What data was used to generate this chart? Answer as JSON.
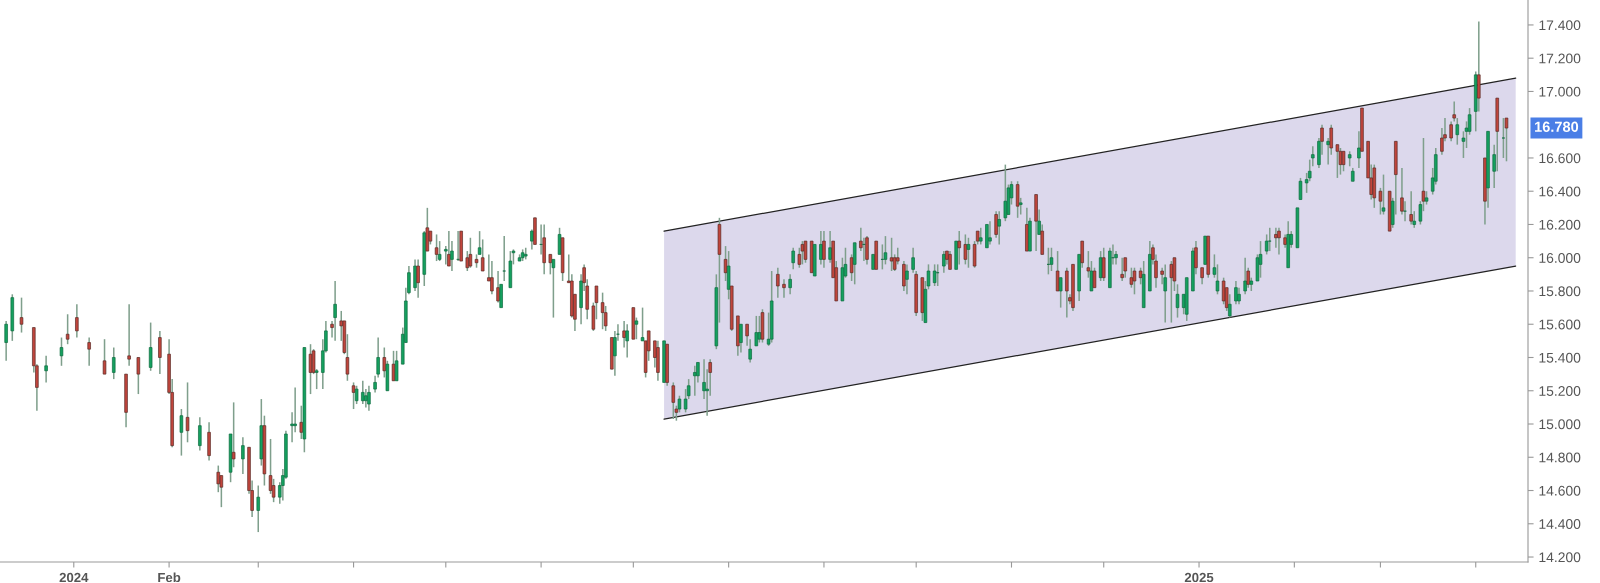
{
  "chart_data": {
    "type": "candlestick",
    "x": [
      "2023-12-10",
      "2023-12-12",
      "2023-12-15",
      "2023-12-19",
      "2023-12-20",
      "2023-12-23",
      "2023-12-28",
      "2023-12-30",
      "2024-01-02",
      "2024-01-06",
      "2024-01-11",
      "2024-01-14",
      "2024-01-18",
      "2024-01-19",
      "2024-01-22",
      "2024-01-26",
      "2024-01-29",
      "2024-02-01",
      "2024-02-02",
      "2024-02-05",
      "2024-02-07",
      "2024-02-11",
      "2024-02-14",
      "2024-02-17",
      "2024-02-18",
      "2024-02-21",
      "2024-02-22",
      "2024-02-25",
      "2024-02-27",
      "2024-02-28",
      "2024-03-01",
      "2024-03-02",
      "2024-03-03",
      "2024-03-05",
      "2024-03-06",
      "2024-03-08",
      "2024-03-09",
      "2024-03-10",
      "2024-03-12",
      "2024-03-13",
      "2024-03-15",
      "2024-03-16",
      "2024-03-18",
      "2024-03-19",
      "2024-03-20",
      "2024-03-22",
      "2024-03-23",
      "2024-03-25",
      "2024-03-26",
      "2024-03-28",
      "2024-03-29",
      "2024-03-30",
      "2024-04-01",
      "2024-04-02",
      "2024-04-04",
      "2024-04-05",
      "2024-04-06",
      "2024-04-08",
      "2024-04-09",
      "2024-04-11",
      "2024-04-12",
      "2024-04-14",
      "2024-04-15",
      "2024-04-17",
      "2024-04-18",
      "2024-04-19",
      "2024-04-21",
      "2024-04-22",
      "2024-04-24",
      "2024-04-25",
      "2024-04-26",
      "2024-04-28",
      "2024-04-29",
      "2024-05-01",
      "2024-05-02",
      "2024-05-03",
      "2024-05-05",
      "2024-05-06",
      "2024-05-08",
      "2024-05-09",
      "2024-05-11",
      "2024-05-12",
      "2024-05-13",
      "2024-05-15",
      "2024-05-16",
      "2024-05-18",
      "2024-05-19",
      "2024-05-20",
      "2024-05-22",
      "2024-05-23",
      "2024-05-25",
      "2024-05-26",
      "2024-05-27",
      "2024-05-29",
      "2024-05-30",
      "2024-06-01",
      "2024-06-02",
      "2024-06-04",
      "2024-06-05",
      "2024-06-07",
      "2024-06-08",
      "2024-06-10",
      "2024-06-11",
      "2024-06-12",
      "2024-06-14",
      "2024-06-15",
      "2024-06-16",
      "2024-06-18",
      "2024-06-19",
      "2024-06-21",
      "2024-06-22",
      "2024-06-24",
      "2024-06-25",
      "2024-06-26",
      "2024-06-28",
      "2024-06-29",
      "2024-07-01",
      "2024-07-02",
      "2024-07-04",
      "2024-07-05",
      "2024-07-06",
      "2024-07-08",
      "2024-07-09",
      "2024-07-11",
      "2024-07-12",
      "2024-07-14",
      "2024-07-15",
      "2024-07-16",
      "2024-07-18",
      "2024-07-19",
      "2024-07-21",
      "2024-07-22",
      "2024-07-24",
      "2024-07-25",
      "2024-07-26",
      "2024-07-28",
      "2024-07-29",
      "2024-07-31",
      "2024-08-01",
      "2024-08-02",
      "2024-08-04",
      "2024-08-05",
      "2024-08-07",
      "2024-08-08",
      "2024-08-10",
      "2024-08-11",
      "2024-08-12",
      "2024-08-14",
      "2024-08-15",
      "2024-08-17",
      "2024-08-19",
      "2024-08-21",
      "2024-08-22",
      "2024-08-24",
      "2024-08-25",
      "2024-08-26",
      "2024-08-28",
      "2024-08-29",
      "2024-08-31",
      "2024-09-01",
      "2024-09-03",
      "2024-09-04",
      "2024-09-05",
      "2024-09-07",
      "2024-09-08",
      "2024-09-10",
      "2024-09-11",
      "2024-09-13",
      "2024-09-14",
      "2024-09-15",
      "2024-09-17",
      "2024-09-18",
      "2024-09-20",
      "2024-09-21",
      "2024-09-23",
      "2024-09-24",
      "2024-09-25",
      "2024-09-27",
      "2024-09-28",
      "2024-09-30",
      "2024-10-01",
      "2024-10-03",
      "2024-10-04",
      "2024-10-05",
      "2024-10-07",
      "2024-10-08",
      "2024-10-10",
      "2024-10-11",
      "2024-10-12",
      "2024-10-14",
      "2024-10-15",
      "2024-10-17",
      "2024-10-18",
      "2024-10-20",
      "2024-10-21",
      "2024-10-22",
      "2024-10-24",
      "2024-10-25",
      "2024-10-27",
      "2024-10-28",
      "2024-10-30",
      "2024-10-31",
      "2024-11-01",
      "2024-11-03",
      "2024-11-04",
      "2024-11-06",
      "2024-11-07",
      "2024-11-09",
      "2024-11-10",
      "2024-11-11",
      "2024-11-13",
      "2024-11-14",
      "2024-11-16",
      "2024-11-17",
      "2024-11-19",
      "2024-11-20",
      "2024-11-21",
      "2024-11-23",
      "2024-11-24",
      "2024-11-26",
      "2024-11-27",
      "2024-11-28",
      "2024-11-30",
      "2024-12-01",
      "2024-12-03",
      "2024-12-04",
      "2024-12-05",
      "2024-12-07",
      "2024-12-08",
      "2024-12-10",
      "2024-12-11",
      "2024-12-13",
      "2024-12-14",
      "2024-12-16",
      "2024-12-17",
      "2024-12-18",
      "2024-12-20",
      "2024-12-21",
      "2024-12-23",
      "2024-12-24",
      "2024-12-25",
      "2024-12-27",
      "2024-12-28",
      "2024-12-30",
      "2024-12-31",
      "2025-01-02",
      "2025-01-03",
      "2025-01-04",
      "2025-01-06",
      "2025-01-07",
      "2025-01-09",
      "2025-01-10",
      "2025-01-11",
      "2025-01-13",
      "2025-01-14",
      "2025-01-16",
      "2025-01-17",
      "2025-01-18",
      "2025-01-20",
      "2025-01-21",
      "2025-01-23",
      "2025-01-24",
      "2025-01-26",
      "2025-01-27",
      "2025-01-29",
      "2025-01-30",
      "2025-01-31",
      "2025-02-02",
      "2025-02-03",
      "2025-02-05",
      "2025-02-06",
      "2025-02-07",
      "2025-02-09",
      "2025-02-10",
      "2025-02-12",
      "2025-02-13",
      "2025-02-15",
      "2025-02-16",
      "2025-02-17",
      "2025-02-19",
      "2025-02-20",
      "2025-02-22",
      "2025-02-23",
      "2025-02-25",
      "2025-02-26",
      "2025-02-27",
      "2025-03-01",
      "2025-03-02",
      "2025-03-04",
      "2025-03-05",
      "2025-03-06",
      "2025-03-08",
      "2025-03-09",
      "2025-03-11",
      "2025-03-12",
      "2025-03-14",
      "2025-03-15",
      "2025-03-16",
      "2025-03-18",
      "2025-03-19",
      "2025-03-21",
      "2025-03-22",
      "2025-03-24",
      "2025-03-25",
      "2025-03-26",
      "2025-03-28",
      "2025-03-29",
      "2025-03-30",
      "2025-04-01",
      "2025-04-02",
      "2025-04-04",
      "2025-04-05",
      "2025-04-07",
      "2025-04-08",
      "2025-04-10",
      "2025-04-11"
    ],
    "ohlc": [
      [
        15.49,
        15.62,
        15.38,
        15.6
      ],
      [
        15.56,
        15.78,
        15.5,
        15.76
      ],
      [
        15.64,
        15.76,
        15.55,
        15.6
      ],
      [
        15.58,
        15.58,
        15.31,
        15.35
      ],
      [
        15.35,
        15.36,
        15.08,
        15.22
      ],
      [
        15.32,
        15.41,
        15.25,
        15.35
      ],
      [
        15.41,
        15.52,
        15.35,
        15.46
      ],
      [
        15.54,
        15.66,
        15.48,
        15.51
      ],
      [
        15.64,
        15.72,
        15.52,
        15.56
      ],
      [
        15.49,
        15.52,
        15.35,
        15.45
      ],
      [
        15.38,
        15.51,
        15.3,
        15.3
      ],
      [
        15.31,
        15.46,
        15.27,
        15.4
      ],
      [
        15.3,
        15.3,
        14.98,
        15.07
      ],
      [
        15.41,
        15.72,
        15.35,
        15.39
      ],
      [
        15.4,
        15.4,
        15.18,
        15.3
      ],
      [
        15.34,
        15.61,
        15.32,
        15.46
      ],
      [
        15.52,
        15.56,
        15.3,
        15.4
      ],
      [
        15.42,
        15.51,
        15.18,
        15.19
      ],
      [
        15.19,
        15.27,
        14.86,
        14.87
      ],
      [
        14.95,
        15.09,
        14.81,
        15.05
      ],
      [
        15.04,
        15.25,
        14.89,
        14.96
      ],
      [
        14.87,
        15.04,
        14.84,
        14.99
      ],
      [
        14.95,
        15.01,
        14.78,
        14.81
      ],
      [
        14.71,
        14.75,
        14.59,
        14.64
      ],
      [
        14.69,
        14.69,
        14.5,
        14.62
      ],
      [
        14.71,
        14.94,
        14.65,
        14.94
      ],
      [
        14.83,
        15.13,
        14.74,
        14.79
      ],
      [
        14.79,
        14.92,
        14.7,
        14.87
      ],
      [
        14.86,
        14.86,
        14.58,
        14.6
      ],
      [
        14.6,
        14.66,
        14.44,
        14.48
      ],
      [
        14.48,
        14.63,
        14.35,
        14.56
      ],
      [
        14.79,
        15.15,
        14.75,
        14.99
      ],
      [
        14.99,
        15.05,
        14.63,
        14.7
      ],
      [
        14.69,
        14.91,
        14.58,
        14.6
      ],
      [
        14.63,
        14.67,
        14.53,
        14.56
      ],
      [
        14.56,
        14.65,
        14.52,
        14.63
      ],
      [
        14.63,
        14.73,
        14.54,
        14.69
      ],
      [
        14.68,
        14.96,
        14.67,
        14.94
      ],
      [
        14.99,
        15.07,
        14.89,
        15.0
      ],
      [
        14.99,
        15.22,
        14.95,
        15.0
      ],
      [
        15.01,
        15.11,
        14.91,
        14.95
      ],
      [
        14.91,
        15.46,
        14.83,
        15.46
      ],
      [
        15.42,
        15.48,
        15.18,
        15.31
      ],
      [
        15.44,
        15.45,
        15.3,
        15.31
      ],
      [
        15.31,
        15.33,
        15.21,
        15.32
      ],
      [
        15.31,
        15.51,
        15.21,
        15.44
      ],
      [
        15.44,
        15.62,
        15.43,
        15.56
      ],
      [
        15.6,
        15.62,
        15.52,
        15.58
      ],
      [
        15.64,
        15.86,
        15.5,
        15.72
      ],
      [
        15.62,
        15.68,
        15.5,
        15.59
      ],
      [
        15.62,
        15.62,
        15.42,
        15.43
      ],
      [
        15.4,
        15.54,
        15.26,
        15.3
      ],
      [
        15.23,
        15.25,
        15.09,
        15.19
      ],
      [
        15.14,
        15.23,
        15.12,
        15.21
      ],
      [
        15.14,
        15.26,
        15.12,
        15.19
      ],
      [
        15.14,
        15.21,
        15.1,
        15.17
      ],
      [
        15.12,
        15.23,
        15.08,
        15.19
      ],
      [
        15.21,
        15.29,
        15.19,
        15.25
      ],
      [
        15.3,
        15.52,
        15.28,
        15.4
      ],
      [
        15.4,
        15.46,
        15.28,
        15.32
      ],
      [
        15.2,
        15.38,
        15.2,
        15.36
      ],
      [
        15.36,
        15.44,
        15.26,
        15.26
      ],
      [
        15.26,
        15.44,
        15.26,
        15.38
      ],
      [
        15.36,
        15.58,
        15.36,
        15.54
      ],
      [
        15.49,
        15.82,
        15.49,
        15.74
      ],
      [
        15.79,
        15.95,
        15.78,
        15.91
      ],
      [
        15.82,
        15.99,
        15.8,
        15.95
      ],
      [
        15.95,
        15.99,
        15.76,
        15.85
      ],
      [
        15.9,
        16.16,
        15.83,
        16.15
      ],
      [
        16.18,
        16.3,
        16.04,
        16.04
      ],
      [
        16.16,
        16.16,
        16.08,
        16.1
      ],
      [
        16.06,
        16.14,
        15.98,
        16.02
      ],
      [
        15.99,
        16.1,
        15.98,
        16.02
      ],
      [
        16.04,
        16.07,
        15.96,
        16.05
      ],
      [
        16.02,
        16.16,
        15.95,
        15.95
      ],
      [
        15.99,
        16.1,
        15.92,
        16.04
      ],
      [
        15.99,
        16.16,
        15.98,
        15.99
      ],
      [
        16.16,
        16.16,
        15.98,
        15.98
      ],
      [
        16.0,
        16.04,
        15.92,
        15.94
      ],
      [
        16.02,
        16.12,
        15.94,
        15.95
      ],
      [
        15.99,
        16.02,
        15.94,
        15.97
      ],
      [
        16.02,
        16.16,
        16.02,
        16.06
      ],
      [
        16.0,
        16.11,
        15.92,
        15.92
      ],
      [
        15.88,
        16.02,
        15.86,
        15.86
      ],
      [
        15.88,
        15.98,
        15.78,
        15.8
      ],
      [
        15.82,
        15.92,
        15.73,
        15.74
      ],
      [
        15.7,
        15.84,
        15.7,
        15.84
      ],
      [
        15.92,
        16.13,
        15.86,
        15.92
      ],
      [
        15.82,
        16.04,
        15.82,
        15.98
      ],
      [
        16.03,
        16.05,
        15.96,
        16.04
      ],
      [
        15.98,
        16.02,
        15.98,
        16.0
      ],
      [
        16.0,
        16.05,
        15.98,
        16.03
      ],
      [
        16.01,
        16.06,
        15.99,
        16.02
      ],
      [
        16.1,
        16.17,
        16.05,
        16.16
      ],
      [
        16.24,
        16.24,
        16.08,
        16.08
      ],
      [
        16.08,
        16.2,
        16.02,
        16.08
      ],
      [
        16.12,
        16.2,
        15.9,
        15.97
      ],
      [
        16.02,
        16.02,
        15.9,
        15.97
      ],
      [
        15.94,
        15.99,
        15.64,
        15.99
      ],
      [
        16.02,
        16.18,
        16.02,
        16.14
      ],
      [
        16.12,
        16.12,
        15.86,
        15.91
      ],
      [
        15.86,
        16.02,
        15.85,
        15.85
      ],
      [
        15.86,
        15.9,
        15.64,
        15.65
      ],
      [
        15.78,
        15.78,
        15.56,
        15.63
      ],
      [
        15.7,
        15.9,
        15.6,
        15.86
      ],
      [
        15.94,
        15.96,
        15.8,
        15.85
      ],
      [
        15.83,
        15.87,
        15.63,
        15.69
      ],
      [
        15.71,
        15.73,
        15.56,
        15.57
      ],
      [
        15.83,
        15.83,
        15.63,
        15.73
      ],
      [
        15.73,
        15.79,
        15.57,
        15.67
      ],
      [
        15.67,
        15.71,
        15.56,
        15.59
      ],
      [
        15.52,
        15.52,
        15.33,
        15.33
      ],
      [
        15.41,
        15.56,
        15.29,
        15.52
      ],
      [
        15.54,
        15.6,
        15.5,
        15.54
      ],
      [
        15.56,
        15.62,
        15.46,
        15.52
      ],
      [
        15.5,
        15.6,
        15.4,
        15.56
      ],
      [
        15.7,
        15.7,
        15.51,
        15.51
      ],
      [
        15.6,
        15.64,
        15.51,
        15.62
      ],
      [
        15.5,
        15.7,
        15.5,
        15.52
      ],
      [
        15.5,
        15.5,
        15.28,
        15.31
      ],
      [
        15.56,
        15.56,
        15.38,
        15.44
      ],
      [
        15.5,
        15.5,
        15.34,
        15.4
      ],
      [
        15.46,
        15.5,
        15.26,
        15.31
      ],
      [
        15.25,
        15.5,
        15.25,
        15.5
      ],
      [
        15.48,
        15.48,
        15.23,
        15.25
      ],
      [
        15.23,
        15.25,
        15.03,
        15.13
      ],
      [
        15.09,
        15.11,
        15.02,
        15.07
      ],
      [
        15.09,
        15.17,
        15.07,
        15.15
      ],
      [
        15.09,
        15.21,
        15.07,
        15.15
      ],
      [
        15.17,
        15.27,
        15.15,
        15.23
      ],
      [
        15.29,
        15.35,
        15.17,
        15.31
      ],
      [
        15.29,
        15.37,
        15.25,
        15.37
      ],
      [
        15.2,
        15.39,
        15.15,
        15.25
      ],
      [
        15.2,
        15.33,
        15.05,
        15.21
      ],
      [
        15.37,
        15.39,
        15.17,
        15.31
      ],
      [
        15.47,
        15.9,
        15.45,
        15.82
      ],
      [
        16.2,
        16.24,
        15.61,
        16.02
      ],
      [
        15.99,
        16.07,
        15.86,
        15.91
      ],
      [
        15.81,
        16.04,
        15.75,
        15.95
      ],
      [
        15.83,
        15.83,
        15.56,
        15.57
      ],
      [
        15.65,
        15.65,
        15.41,
        15.47
      ],
      [
        15.49,
        15.6,
        15.43,
        15.6
      ],
      [
        15.6,
        15.6,
        15.47,
        15.53
      ],
      [
        15.39,
        15.51,
        15.37,
        15.45
      ],
      [
        15.47,
        15.65,
        15.47,
        15.55
      ],
      [
        15.51,
        15.65,
        15.49,
        15.55
      ],
      [
        15.67,
        15.69,
        15.49,
        15.51
      ],
      [
        15.48,
        15.67,
        15.47,
        15.51
      ],
      [
        15.51,
        15.92,
        15.49,
        15.74
      ],
      [
        15.9,
        15.94,
        15.76,
        15.83
      ],
      [
        15.84,
        15.87,
        15.76,
        15.82
      ],
      [
        15.82,
        15.9,
        15.78,
        15.87
      ],
      [
        15.97,
        16.06,
        15.93,
        16.04
      ],
      [
        16.02,
        16.06,
        15.94,
        15.96
      ],
      [
        16.08,
        16.1,
        15.96,
        16.04
      ],
      [
        16.1,
        16.1,
        15.97,
        15.99
      ],
      [
        16.1,
        16.1,
        15.91,
        15.91
      ],
      [
        15.89,
        16.08,
        15.89,
        16.08
      ],
      [
        15.99,
        16.16,
        15.96,
        16.08
      ],
      [
        16.1,
        16.16,
        15.94,
        15.99
      ],
      [
        15.99,
        16.16,
        15.97,
        16.06
      ],
      [
        16.1,
        16.1,
        15.88,
        15.88
      ],
      [
        15.94,
        15.98,
        15.74,
        15.74
      ],
      [
        15.74,
        16.0,
        15.74,
        15.94
      ],
      [
        15.89,
        16.06,
        15.88,
        15.96
      ],
      [
        16.0,
        16.02,
        15.86,
        15.91
      ],
      [
        15.96,
        16.09,
        15.84,
        16.09
      ],
      [
        16.1,
        16.18,
        16.04,
        16.06
      ],
      [
        16.08,
        16.12,
        15.98,
        16.08
      ],
      [
        16.12,
        16.13,
        15.96,
        15.99
      ],
      [
        15.93,
        16.02,
        15.93,
        16.02
      ],
      [
        16.1,
        16.1,
        15.93,
        15.93
      ],
      [
        15.99,
        16.08,
        15.93,
        15.99
      ],
      [
        15.99,
        16.13,
        15.96,
        16.03
      ],
      [
        16.0,
        16.12,
        15.92,
        15.98
      ],
      [
        16.0,
        16.02,
        15.92,
        15.93
      ],
      [
        16.0,
        16.06,
        15.96,
        15.98
      ],
      [
        15.96,
        15.98,
        15.8,
        15.83
      ],
      [
        15.87,
        15.96,
        15.78,
        15.92
      ],
      [
        15.93,
        16.06,
        15.91,
        16.0
      ],
      [
        15.9,
        15.92,
        15.65,
        15.67
      ],
      [
        15.88,
        15.88,
        15.62,
        15.67
      ],
      [
        15.61,
        15.86,
        15.61,
        15.81
      ],
      [
        15.83,
        15.96,
        15.81,
        15.92
      ],
      [
        15.85,
        15.96,
        15.83,
        15.92
      ],
      [
        15.91,
        15.96,
        15.83,
        15.91
      ],
      [
        15.95,
        16.04,
        15.91,
        16.02
      ],
      [
        16.04,
        16.04,
        15.96,
        15.99
      ],
      [
        16.02,
        16.04,
        15.93,
        15.93
      ],
      [
        15.93,
        16.1,
        15.93,
        16.1
      ],
      [
        16.1,
        16.16,
        15.96,
        16.06
      ],
      [
        16.08,
        16.14,
        15.96,
        15.99
      ],
      [
        16.05,
        16.12,
        15.94,
        16.08
      ],
      [
        16.08,
        16.1,
        15.94,
        15.95
      ],
      [
        16.16,
        16.16,
        16.08,
        16.1
      ],
      [
        16.1,
        16.18,
        16.08,
        16.12
      ],
      [
        16.06,
        16.2,
        16.06,
        16.2
      ],
      [
        16.1,
        16.22,
        16.08,
        16.12
      ],
      [
        16.26,
        16.28,
        16.12,
        16.14
      ],
      [
        16.19,
        16.28,
        16.08,
        16.23
      ],
      [
        16.24,
        16.56,
        16.22,
        16.34
      ],
      [
        16.26,
        16.44,
        16.26,
        16.42
      ],
      [
        16.36,
        16.46,
        16.32,
        16.44
      ],
      [
        16.44,
        16.46,
        16.24,
        16.31
      ],
      [
        16.32,
        16.36,
        16.26,
        16.33
      ],
      [
        16.2,
        16.3,
        16.04,
        16.04
      ],
      [
        16.04,
        16.24,
        16.04,
        16.22
      ],
      [
        16.38,
        16.38,
        16.04,
        16.22
      ],
      [
        16.14,
        16.29,
        16.14,
        16.22
      ],
      [
        16.16,
        16.2,
        16.02,
        16.02
      ],
      [
        15.96,
        16.06,
        15.9,
        15.96
      ],
      [
        15.96,
        16.06,
        15.92,
        16.0
      ],
      [
        15.92,
        16.04,
        15.8,
        15.8
      ],
      [
        15.8,
        15.88,
        15.7,
        15.88
      ],
      [
        15.92,
        15.94,
        15.64,
        15.8
      ],
      [
        15.76,
        15.78,
        15.72,
        15.74
      ],
      [
        15.96,
        15.96,
        15.68,
        15.7
      ],
      [
        15.8,
        16.02,
        15.74,
        16.02
      ],
      [
        16.1,
        16.1,
        15.94,
        15.97
      ],
      [
        15.94,
        16.04,
        15.88,
        15.92
      ],
      [
        15.8,
        15.98,
        15.8,
        15.92
      ],
      [
        15.92,
        15.94,
        15.82,
        15.82
      ],
      [
        15.88,
        16.04,
        15.86,
        16.0
      ],
      [
        16.0,
        16.06,
        15.86,
        15.88
      ],
      [
        15.82,
        16.06,
        15.82,
        16.04
      ],
      [
        16.0,
        16.08,
        15.96,
        16.0
      ],
      [
        16.0,
        16.04,
        15.96,
        16.02
      ],
      [
        15.9,
        16.0,
        15.86,
        15.88
      ],
      [
        16.0,
        16.0,
        15.88,
        15.92
      ],
      [
        15.88,
        15.94,
        15.82,
        15.84
      ],
      [
        15.92,
        15.94,
        15.78,
        15.86
      ],
      [
        15.92,
        15.94,
        15.84,
        15.88
      ],
      [
        15.7,
        15.98,
        15.7,
        15.9
      ],
      [
        15.8,
        16.1,
        15.8,
        16.02
      ],
      [
        16.06,
        16.08,
        15.96,
        15.99
      ],
      [
        15.98,
        16.02,
        15.82,
        15.88
      ],
      [
        15.92,
        15.94,
        15.84,
        15.9
      ],
      [
        15.8,
        15.96,
        15.61,
        15.88
      ],
      [
        15.96,
        15.98,
        15.61,
        15.88
      ],
      [
        16.0,
        16.0,
        15.8,
        15.86
      ],
      [
        15.7,
        15.84,
        15.64,
        15.78
      ],
      [
        15.7,
        15.78,
        15.66,
        15.78
      ],
      [
        15.66,
        15.88,
        15.62,
        15.88
      ],
      [
        15.8,
        16.06,
        15.8,
        16.04
      ],
      [
        16.06,
        16.1,
        15.9,
        15.94
      ],
      [
        15.94,
        15.94,
        15.84,
        15.88
      ],
      [
        15.96,
        16.13,
        15.96,
        16.13
      ],
      [
        16.13,
        16.13,
        15.88,
        15.9
      ],
      [
        15.9,
        16.02,
        15.88,
        15.94
      ],
      [
        15.8,
        15.96,
        15.78,
        15.86
      ],
      [
        15.86,
        15.88,
        15.72,
        15.74
      ],
      [
        15.82,
        15.82,
        15.68,
        15.7
      ],
      [
        15.65,
        15.78,
        15.64,
        15.72
      ],
      [
        15.74,
        15.86,
        15.72,
        15.82
      ],
      [
        15.74,
        15.82,
        15.72,
        15.78
      ],
      [
        15.8,
        16.0,
        15.78,
        15.86
      ],
      [
        15.92,
        15.94,
        15.82,
        15.84
      ],
      [
        15.84,
        15.88,
        15.8,
        15.86
      ],
      [
        15.86,
        16.02,
        15.86,
        16.0
      ],
      [
        15.96,
        16.1,
        15.88,
        16.02
      ],
      [
        16.04,
        16.14,
        16.02,
        16.1
      ],
      [
        16.1,
        16.18,
        16.04,
        16.1
      ],
      [
        16.14,
        16.18,
        16.06,
        16.12
      ],
      [
        16.16,
        16.18,
        16.02,
        16.12
      ],
      [
        16.12,
        16.14,
        16.06,
        16.08
      ],
      [
        15.94,
        16.22,
        15.94,
        16.14
      ],
      [
        16.08,
        16.16,
        16.06,
        16.14
      ],
      [
        16.06,
        16.3,
        16.06,
        16.3
      ],
      [
        16.35,
        16.48,
        16.35,
        16.46
      ],
      [
        16.45,
        16.51,
        16.39,
        16.47
      ],
      [
        16.48,
        16.59,
        16.46,
        16.52
      ],
      [
        16.6,
        16.67,
        16.55,
        16.62
      ],
      [
        16.56,
        16.72,
        16.54,
        16.7
      ],
      [
        16.78,
        16.8,
        16.62,
        16.7
      ],
      [
        16.68,
        16.72,
        16.56,
        16.7
      ],
      [
        16.78,
        16.8,
        16.62,
        16.66
      ],
      [
        16.68,
        16.68,
        16.48,
        16.64
      ],
      [
        16.64,
        16.66,
        16.5,
        16.56
      ],
      [
        16.64,
        16.64,
        16.52,
        16.56
      ],
      [
        16.6,
        16.64,
        16.55,
        16.62
      ],
      [
        16.46,
        16.54,
        16.46,
        16.52
      ],
      [
        16.6,
        16.76,
        16.54,
        16.66
      ],
      [
        16.9,
        16.9,
        16.64,
        16.64
      ],
      [
        16.7,
        16.7,
        16.48,
        16.48
      ],
      [
        16.48,
        16.56,
        16.35,
        16.38
      ],
      [
        16.54,
        16.56,
        16.3,
        16.36
      ],
      [
        16.4,
        16.42,
        16.26,
        16.34
      ],
      [
        16.28,
        16.5,
        16.26,
        16.3
      ],
      [
        16.4,
        16.4,
        16.16,
        16.16
      ],
      [
        16.2,
        16.36,
        16.18,
        16.34
      ],
      [
        16.7,
        16.7,
        16.26,
        16.5
      ],
      [
        16.36,
        16.54,
        16.26,
        16.28
      ],
      [
        16.28,
        16.34,
        16.22,
        16.28
      ],
      [
        16.26,
        16.4,
        16.2,
        16.22
      ],
      [
        16.2,
        16.28,
        16.18,
        16.22
      ],
      [
        16.22,
        16.34,
        16.2,
        16.32
      ],
      [
        16.4,
        16.72,
        16.28,
        16.34
      ],
      [
        16.34,
        16.4,
        16.32,
        16.36
      ],
      [
        16.4,
        16.54,
        16.38,
        16.48
      ],
      [
        16.46,
        16.66,
        16.44,
        16.62
      ],
      [
        16.72,
        16.78,
        16.62,
        16.64
      ],
      [
        16.74,
        16.84,
        16.7,
        16.72
      ],
      [
        16.8,
        16.82,
        16.7,
        16.72
      ],
      [
        16.86,
        16.94,
        16.82,
        16.84
      ],
      [
        16.74,
        16.84,
        16.68,
        16.8
      ],
      [
        16.7,
        16.76,
        16.6,
        16.72
      ],
      [
        16.76,
        16.82,
        16.66,
        16.78
      ],
      [
        16.76,
        16.9,
        16.74,
        16.86
      ],
      [
        16.88,
        17.12,
        16.76,
        17.1
      ],
      [
        17.1,
        17.42,
        16.88,
        16.96
      ],
      [
        16.6,
        16.6,
        16.2,
        16.34
      ],
      [
        16.42,
        16.76,
        16.3,
        16.76
      ],
      [
        16.52,
        16.68,
        16.42,
        16.62
      ],
      [
        16.96,
        16.96,
        16.52,
        16.76
      ],
      [
        16.72,
        16.84,
        16.6,
        16.72
      ],
      [
        16.84,
        16.84,
        16.58,
        16.78
      ]
    ],
    "series": [
      {
        "type": "line",
        "x": [
          "2024-07-11",
          "2025-04-14"
        ],
        "values": [
          15.03,
          15.95
        ],
        "color": "#222222"
      },
      {
        "type": "line",
        "x": [
          "2024-07-11",
          "2025-04-14"
        ],
        "values": [
          16.16,
          17.08
        ],
        "color": "#222222",
        "lower": [
          15.03,
          15.95
        ],
        "upper": [
          16.16,
          17.08
        ]
      }
    ],
    "xlim": [
      "2023-12-08",
      "2025-04-18"
    ],
    "xticks": [
      {
        "value": "2024-01-01",
        "label": "2024"
      },
      {
        "value": "2024-02-01",
        "label": "Feb"
      },
      {
        "value": "2024-03-01",
        "label": null
      },
      {
        "value": "2024-04-01",
        "label": null
      },
      {
        "value": "2024-05-01",
        "label": null
      },
      {
        "value": "2024-06-01",
        "label": null
      },
      {
        "value": "2024-07-01",
        "label": null
      },
      {
        "value": "2024-08-01",
        "label": null
      },
      {
        "value": "2024-09-01",
        "label": null
      },
      {
        "value": "2024-10-01",
        "label": null
      },
      {
        "value": "2024-11-01",
        "label": null
      },
      {
        "value": "2024-12-01",
        "label": null
      },
      {
        "value": "2025-01-01",
        "label": "2025"
      },
      {
        "value": "2025-02-01",
        "label": null
      },
      {
        "value": "2025-03-01",
        "label": null
      },
      {
        "value": "2025-04-01",
        "label": null
      }
    ],
    "ylim": [
      14.17,
      17.55
    ],
    "yticks": [
      {
        "value": 14.2,
        "label": "14.200"
      },
      {
        "value": 14.4,
        "label": "14.400"
      },
      {
        "value": 14.6,
        "label": "14.600"
      },
      {
        "value": 14.8,
        "label": "14.800"
      },
      {
        "value": 15.0,
        "label": "15.000"
      },
      {
        "value": 15.2,
        "label": "15.200"
      },
      {
        "value": 15.4,
        "label": "15.400"
      },
      {
        "value": 15.6,
        "label": "15.600"
      },
      {
        "value": 15.8,
        "label": "15.800"
      },
      {
        "value": 16.0,
        "label": "16.000"
      },
      {
        "value": 16.2,
        "label": "16.200"
      },
      {
        "value": 16.4,
        "label": "16.400"
      },
      {
        "value": 16.6,
        "label": "16.600"
      },
      {
        "value": 17.0,
        "label": "17.000"
      },
      {
        "value": 17.2,
        "label": "17.200"
      },
      {
        "value": 17.4,
        "label": "17.400"
      }
    ],
    "annotations": [
      "16.780"
    ]
  }
}
